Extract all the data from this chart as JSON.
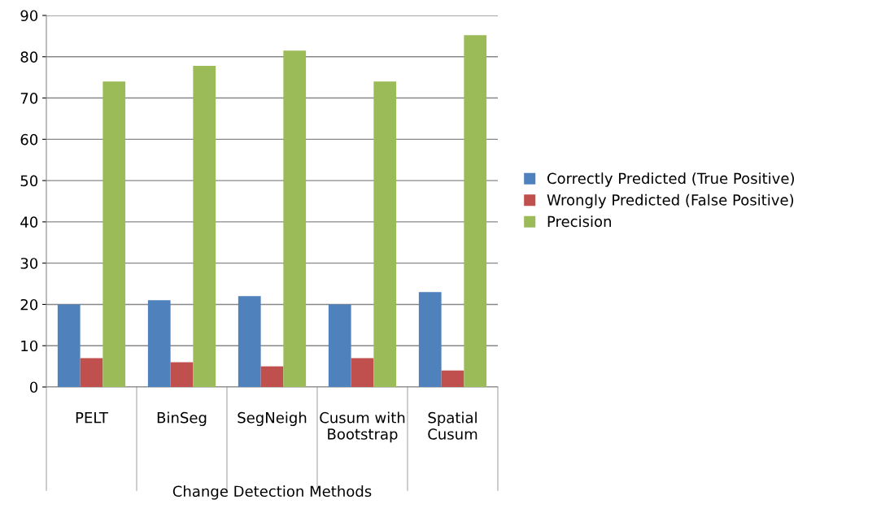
{
  "chart_data": {
    "type": "bar",
    "xlabel": "Change Detection Methods",
    "categories": [
      "PELT",
      "BinSeg",
      "SegNeigh",
      "Cusum with\nBootstrap",
      "Spatial\nCusum"
    ],
    "series": [
      {
        "name": "Correctly Predicted (True Positive)",
        "color": "#4f81bd",
        "values": [
          20,
          21,
          22,
          20,
          23
        ]
      },
      {
        "name": "Wrongly Predicted (False Positive)",
        "color": "#c0504d",
        "values": [
          7,
          6,
          5,
          7,
          4
        ]
      },
      {
        "name": "Precision",
        "color": "#9bbb59",
        "values": [
          74,
          77.8,
          81.5,
          74,
          85.2
        ]
      }
    ],
    "ylim": [
      0,
      90
    ],
    "yticks": [
      0,
      10,
      20,
      30,
      40,
      50,
      60,
      70,
      80,
      90
    ],
    "grid": "y",
    "legend": "right"
  }
}
